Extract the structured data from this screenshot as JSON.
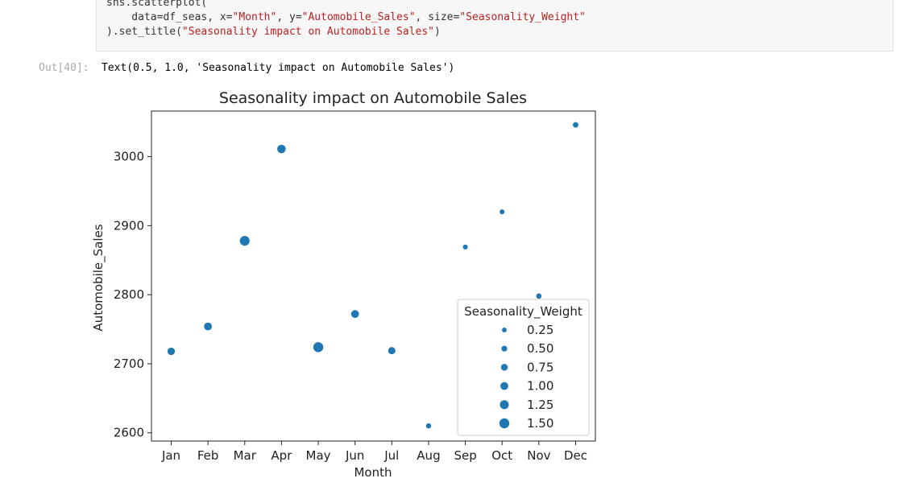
{
  "code": {
    "line1": "sns.scatterplot(",
    "line2_pre": "    data=df_seas, x=",
    "line2_x": "\"Month\"",
    "line2_mid": ", y=",
    "line2_y": "\"Automobile_Sales\"",
    "line2_mid2": ", size=",
    "line2_size": "\"Seasonality_Weight\"",
    "line3_pre": ").set_title(",
    "line3_title": "\"Seasonality impact on Automobile Sales\"",
    "line3_post": ")"
  },
  "output": {
    "prompt": "Out[40]:",
    "text": "Text(0.5, 1.0, 'Seasonality impact on Automobile Sales')"
  },
  "colors": {
    "marker": "#1f77b4",
    "axis": "#222222"
  },
  "chart_data": {
    "type": "scatter",
    "title": "Seasonality impact on Automobile Sales",
    "xlabel": "Month",
    "ylabel": "Automobile_Sales",
    "categories": [
      "Jan",
      "Feb",
      "Mar",
      "Apr",
      "May",
      "Jun",
      "Jul",
      "Aug",
      "Sep",
      "Oct",
      "Nov",
      "Dec"
    ],
    "values": [
      2718,
      2754,
      2878,
      3011,
      2724,
      2772,
      2719,
      2610,
      2869,
      2920,
      2798,
      3046
    ],
    "sizes": [
      0.9,
      1.0,
      1.45,
      1.15,
      1.5,
      1.0,
      0.85,
      0.35,
      0.3,
      0.3,
      0.4,
      0.45
    ],
    "ylim": [
      2588,
      3066
    ],
    "yticks": [
      "2600",
      "2700",
      "2800",
      "2900",
      "3000"
    ],
    "grid": false,
    "legend": {
      "title": "Seasonality_Weight",
      "placement": "lower-right",
      "entries": [
        "0.25",
        "0.50",
        "0.75",
        "1.00",
        "1.25",
        "1.50"
      ]
    }
  }
}
